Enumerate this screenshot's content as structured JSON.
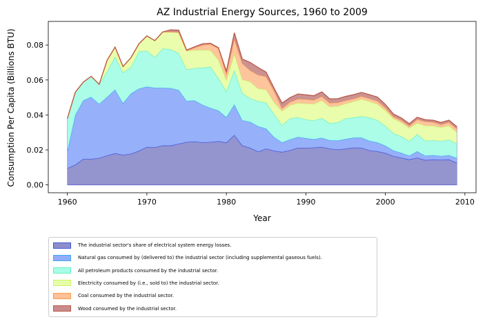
{
  "chart_data": {
    "type": "area",
    "stacked": true,
    "title": "AZ Industrial Energy Sources, 1960 to 2009",
    "xlabel": "Year",
    "ylabel": "Consumption Per Capita (Billions BTU)",
    "xlim": [
      1957.6,
      2011.4
    ],
    "ylim": [
      -0.0045,
      0.0935
    ],
    "xticks": [
      1960,
      1970,
      1980,
      1990,
      2000,
      2010
    ],
    "xtick_labels": [
      "1960",
      "1970",
      "1980",
      "1990",
      "2000",
      "2010"
    ],
    "yticks": [
      0.0,
      0.02,
      0.04,
      0.06,
      0.08
    ],
    "ytick_labels": [
      "0.00",
      "0.02",
      "0.04",
      "0.06",
      "0.08"
    ],
    "grid": false,
    "legend_position": "below",
    "x": [
      1960,
      1961,
      1962,
      1963,
      1964,
      1965,
      1966,
      1967,
      1968,
      1969,
      1970,
      1971,
      1972,
      1973,
      1974,
      1975,
      1976,
      1977,
      1978,
      1979,
      1980,
      1981,
      1982,
      1983,
      1984,
      1985,
      1986,
      1987,
      1988,
      1989,
      1990,
      1991,
      1992,
      1993,
      1994,
      1995,
      1996,
      1997,
      1998,
      1999,
      2000,
      2001,
      2002,
      2003,
      2004,
      2005,
      2006,
      2007,
      2008,
      2009
    ],
    "series": [
      {
        "name": "The industrial sector's share of electrical system energy losses.",
        "fill": "#8e8ecb",
        "line": "#3f55d6",
        "values": [
          0.0095,
          0.0115,
          0.0148,
          0.0148,
          0.0153,
          0.0168,
          0.018,
          0.0172,
          0.0178,
          0.0195,
          0.0217,
          0.0215,
          0.0225,
          0.0225,
          0.0235,
          0.0245,
          0.0248,
          0.0243,
          0.0245,
          0.025,
          0.0242,
          0.0285,
          0.0225,
          0.0212,
          0.019,
          0.0207,
          0.0195,
          0.0188,
          0.0198,
          0.0212,
          0.0212,
          0.0213,
          0.0217,
          0.0207,
          0.0202,
          0.0207,
          0.0213,
          0.0212,
          0.0197,
          0.0192,
          0.0182,
          0.0165,
          0.0155,
          0.0145,
          0.0155,
          0.0142,
          0.0145,
          0.0143,
          0.0145,
          0.0125
        ]
      },
      {
        "name": "Natural gas consumed by (delivered to) the industrial sector (including supplemental gaseous fuels).",
        "fill": "#91acfa",
        "line": "#41a9f0",
        "values": [
          0.01,
          0.0285,
          0.0335,
          0.0355,
          0.031,
          0.0335,
          0.0365,
          0.0295,
          0.0345,
          0.0355,
          0.0345,
          0.034,
          0.033,
          0.0328,
          0.0308,
          0.0235,
          0.0235,
          0.0215,
          0.0195,
          0.0175,
          0.0145,
          0.0175,
          0.0145,
          0.0148,
          0.0145,
          0.0115,
          0.0078,
          0.0055,
          0.0062,
          0.0062,
          0.0055,
          0.0048,
          0.0052,
          0.0048,
          0.0052,
          0.0055,
          0.0057,
          0.0058,
          0.0055,
          0.0051,
          0.0042,
          0.0032,
          0.0028,
          0.0022,
          0.0037,
          0.0025,
          0.0025,
          0.0022,
          0.0025,
          0.0028
        ]
      },
      {
        "name": "All petroleum products consumed by the industrial sector.",
        "fill": "#a6fde7",
        "line": "#6deec2",
        "values": [
          0.0185,
          0.013,
          0.0105,
          0.0118,
          0.0112,
          0.0145,
          0.0188,
          0.0175,
          0.015,
          0.0212,
          0.0205,
          0.0175,
          0.0225,
          0.0222,
          0.021,
          0.018,
          0.0185,
          0.0212,
          0.0235,
          0.0185,
          0.0148,
          0.0195,
          0.0155,
          0.0135,
          0.0143,
          0.0148,
          0.0132,
          0.0098,
          0.012,
          0.0112,
          0.0107,
          0.0107,
          0.0113,
          0.0097,
          0.0103,
          0.0118,
          0.0115,
          0.0122,
          0.0133,
          0.0127,
          0.0113,
          0.0098,
          0.0095,
          0.0083,
          0.0098,
          0.0085,
          0.0085,
          0.0085,
          0.0088,
          0.0082
        ]
      },
      {
        "name": "Electricity consumed by (i.e., sold to) the industrial sector.",
        "fill": "#e8fda8",
        "line": "#c6f56c",
        "values": [
          0.0,
          0.0,
          0.0,
          0.0,
          0.0,
          0.0065,
          0.0055,
          0.0035,
          0.0055,
          0.0045,
          0.0085,
          0.0095,
          0.0095,
          0.01,
          0.012,
          0.0108,
          0.0102,
          0.0102,
          0.0095,
          0.0105,
          0.0065,
          0.0095,
          0.0078,
          0.0095,
          0.0073,
          0.0075,
          0.0068,
          0.0082,
          0.0076,
          0.0082,
          0.0091,
          0.0095,
          0.0101,
          0.0095,
          0.0093,
          0.0085,
          0.0092,
          0.0098,
          0.0093,
          0.0092,
          0.0089,
          0.0085,
          0.0079,
          0.0076,
          0.0064,
          0.0087,
          0.0083,
          0.0079,
          0.0081,
          0.0066
        ]
      },
      {
        "name": "Coal consumed by the industrial sector.",
        "fill": "#fec197",
        "line": "#fb9b4d",
        "values": [
          0.0,
          0.0,
          0.0,
          0.0,
          0.0,
          0.0,
          0.0,
          0.0,
          0.0,
          0.0,
          0.0,
          0.0,
          0.0,
          0.0,
          0.0,
          0.0,
          0.0015,
          0.0028,
          0.0035,
          0.0065,
          0.0035,
          0.0085,
          0.0092,
          0.0065,
          0.0078,
          0.0075,
          0.0065,
          0.0015,
          0.0018,
          0.0024,
          0.0025,
          0.0022,
          0.0023,
          0.0022,
          0.0021,
          0.0018,
          0.0016,
          0.0017,
          0.0016,
          0.0018,
          0.0016,
          0.0011,
          0.0013,
          0.0011,
          0.0021,
          0.0023,
          0.0021,
          0.0016,
          0.0019,
          0.0019
        ]
      },
      {
        "name": "Wood consumed by the industrial sector.",
        "fill": "#c98c8c",
        "line": "#b85a48",
        "values": [
          0.0,
          0.0,
          0.0,
          0.0,
          0.0,
          0.0,
          0.0,
          0.0,
          0.0,
          0.0,
          0.0,
          0.0,
          0.0,
          0.0012,
          0.0012,
          0.0003,
          0.0005,
          0.0007,
          0.0005,
          0.0005,
          0.0015,
          0.0035,
          0.0025,
          0.0045,
          0.0042,
          0.0025,
          0.0015,
          0.003,
          0.0025,
          0.0028,
          0.0025,
          0.0025,
          0.0026,
          0.0023,
          0.0022,
          0.0023,
          0.0023,
          0.0022,
          0.0022,
          0.0022,
          0.0018,
          0.0015,
          0.0013,
          0.0013,
          0.0012,
          0.0011,
          0.0011,
          0.0012,
          0.0012,
          0.0013
        ]
      }
    ]
  }
}
